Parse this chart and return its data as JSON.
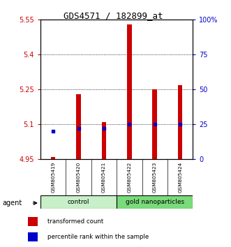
{
  "title": "GDS4571 / 182899_at",
  "categories": [
    "GSM805419",
    "GSM805420",
    "GSM805421",
    "GSM805422",
    "GSM805423",
    "GSM805424"
  ],
  "red_values": [
    4.96,
    5.23,
    5.11,
    5.53,
    5.25,
    5.27
  ],
  "blue_percentile": [
    20,
    22,
    22,
    25,
    25,
    25
  ],
  "ylim_left": [
    4.95,
    5.55
  ],
  "ylim_right": [
    0,
    100
  ],
  "left_ticks": [
    4.95,
    5.1,
    5.25,
    5.4,
    5.55
  ],
  "right_ticks": [
    0,
    25,
    50,
    75,
    100
  ],
  "right_tick_labels": [
    "0",
    "25",
    "50",
    "75",
    "100%"
  ],
  "group_labels": [
    "control",
    "gold nanoparticles"
  ],
  "group_ranges": [
    [
      0,
      3
    ],
    [
      3,
      6
    ]
  ],
  "group_colors_light": [
    "#c8f0c8",
    "#7adb7a"
  ],
  "bar_color": "#cc0000",
  "dot_color": "#0000cc",
  "baseline": 4.95,
  "agent_label": "agent",
  "legend_red": "transformed count",
  "legend_blue": "percentile rank within the sample",
  "bar_width": 0.18
}
